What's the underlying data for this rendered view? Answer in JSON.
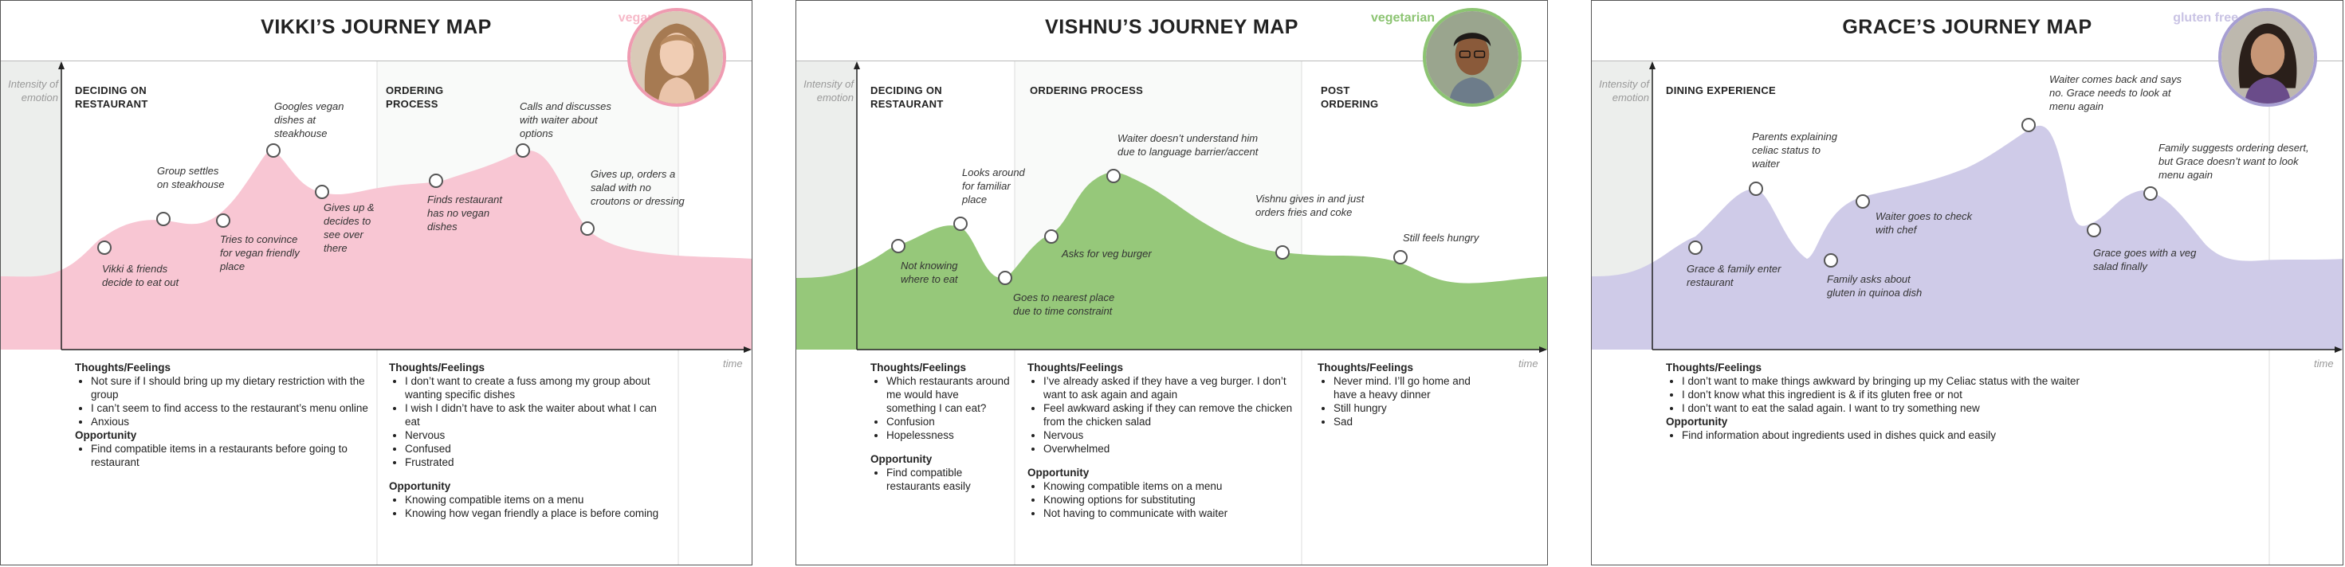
{
  "maps": [
    {
      "title": "VIKKI’S JOURNEY MAP",
      "diet": "vegan",
      "diet_color": "#f6b9c8",
      "accent_color": "#f8c6d3",
      "stroke_color": "#ef9bb1",
      "axis_y": "Intensity of emotion",
      "axis_x": "time",
      "stages": [
        "DECIDING ON RESTAURANT",
        "ORDERING PROCESS"
      ],
      "annotations": [
        "Vikki & friends decide to eat out",
        "Group settles on steakhouse",
        "Tries to convince for vegan friendly place",
        "Googles vegan dishes at steakhouse",
        "Gives up & decides to see over there",
        "Finds restaurant has no vegan dishes",
        "Calls and discusses with waiter about options",
        "Gives up, orders a salad with no croutons or dressing"
      ],
      "notes": [
        {
          "thoughts_heading": "Thoughts/Feelings",
          "thoughts": [
            "Not sure if I should bring up my dietary restriction with the group",
            "I can’t seem to find access to the restaurant’s menu online",
            "Anxious"
          ],
          "opportunity_heading": "Opportunity",
          "opportunity": [
            "Find compatible items in a restaurants before going to restaurant"
          ]
        },
        {
          "thoughts_heading": "Thoughts/Feelings",
          "thoughts": [
            "I don’t want to create a fuss among my group about wanting specific dishes",
            "I wish I didn’t have to ask the waiter about what I can eat",
            "Nervous",
            "Confused",
            "Frustrated"
          ],
          "opportunity_heading": "Opportunity",
          "opportunity": [
            "Knowing compatible items on a menu",
            "Knowing how vegan friendly a place is before coming"
          ]
        }
      ]
    },
    {
      "title": "VISHNU’S JOURNEY MAP",
      "diet": "vegetarian",
      "diet_color": "#8cc472",
      "accent_color": "#96c87a",
      "stroke_color": "#7db563",
      "axis_y": "Intensity of emotion",
      "axis_x": "time",
      "stages": [
        "DECIDING ON RESTAURANT",
        "ORDERING PROCESS",
        "POST ORDERING"
      ],
      "annotations": [
        "Not knowing where to eat",
        "Looks around for familiar place",
        "Goes to nearest place due to time constraint",
        "Asks for veg burger",
        "Waiter doesn’t understand him due to language barrier/accent",
        "Vishnu gives in and just orders fries and coke",
        "Still feels hungry"
      ],
      "notes": [
        {
          "thoughts_heading": "Thoughts/Feelings",
          "thoughts": [
            "Which restaurants around me would have something I can eat?",
            "Confusion",
            "Hopelessness"
          ],
          "opportunity_heading": "Opportunity",
          "opportunity": [
            "Find compatible restaurants easily"
          ]
        },
        {
          "thoughts_heading": "Thoughts/Feelings",
          "thoughts": [
            "I’ve already asked if they have a veg burger. I don’t want to ask again and again",
            "Feel awkward asking if they can remove the chicken from the chicken salad",
            "Nervous",
            "Overwhelmed"
          ],
          "opportunity_heading": "Opportunity",
          "opportunity": [
            "Knowing compatible items on a menu",
            "Knowing options for substituting",
            "Not having to communicate with waiter"
          ]
        },
        {
          "thoughts_heading": "Thoughts/Feelings",
          "thoughts": [
            "Never mind. I’ll go home and have a heavy dinner",
            "Still hungry",
            "Sad"
          ],
          "opportunity_heading": "",
          "opportunity": []
        }
      ]
    },
    {
      "title": "GRACE’S JOURNEY MAP",
      "diet": "gluten free",
      "diet_color": "#c9c3e4",
      "accent_color": "#cfcbe8",
      "stroke_color": "#a79fd2",
      "axis_y": "Intensity of emotion",
      "axis_x": "time",
      "stages": [
        "DINING EXPERIENCE"
      ],
      "annotations": [
        "Grace & family enter restaurant",
        "Parents explaining celiac status to waiter",
        "Family asks about gluten in quinoa dish",
        "Waiter goes to check with chef",
        "Waiter comes back and says no. Grace needs to look at menu again",
        "Grace goes with a veg salad finally",
        "Family suggests ordering desert, but Grace doesn’t want to look menu again"
      ],
      "notes": [
        {
          "thoughts_heading": "Thoughts/Feelings",
          "thoughts": [
            "I don’t want to make things awkward by bringing up my Celiac status with the waiter",
            "I don’t know what this ingredient is & if its gluten free or not",
            "I don’t want to eat the salad again. I want to try something new"
          ],
          "opportunity_heading": "Opportunity",
          "opportunity": [
            "Find information about ingredients used in dishes quick and easily"
          ]
        }
      ]
    }
  ]
}
